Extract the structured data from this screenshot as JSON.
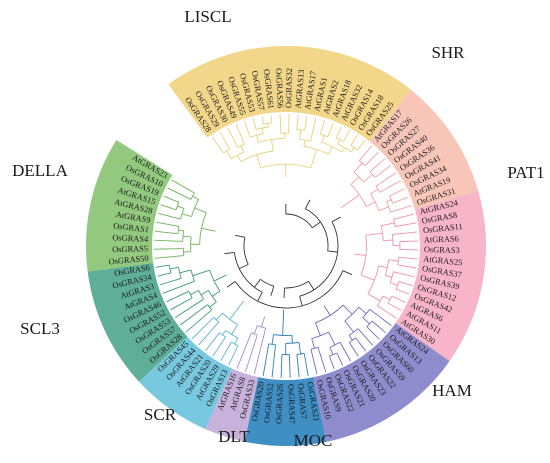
{
  "clades": [
    {
      "name": "LISCL",
      "color": "#f2d68a",
      "branch": "#e8d27a",
      "leaves": [
        "OsGRAS28",
        "OsGRAS29",
        "OsGRAS30",
        "OsGRAS49",
        "OsGRAS55",
        "OsGRAS53",
        "OsGRAS57",
        "OsGRAS61",
        "OsGRAS56",
        "OsGRAS32",
        "AtGRAS13",
        "AtGRAS17",
        "AtGRAS1",
        "AtGRAS2",
        "AtGRAS18",
        "AtGRAS32",
        "OsGRAS14",
        "OsGRAS18",
        "OsGRAS25"
      ]
    },
    {
      "name": "SHR",
      "color": "#f7c6b8",
      "branch": "#f0a0a8",
      "leaves": [
        "AtGRAS17",
        "OsGRAS26",
        "OsGRAS27",
        "OsGRAS40",
        "OsGRAS36",
        "OsGRAS41",
        "OsGRAS34",
        "AtGRAS19",
        "OsGRAS31"
      ]
    },
    {
      "name": "PAT1",
      "color": "#f8b4c8",
      "branch": "#f090b0",
      "leaves": [
        "AtGRAS24",
        "OsGRAS8",
        "OsGRAS11",
        "AtGRAS6",
        "OsGRAS3",
        "AtGRAS25",
        "OsGRAS37",
        "OsGRAS39",
        "OsGRAS12",
        "OsGRAS42",
        "AtGRAS6",
        "AtGRAS11",
        "AtGRAS30"
      ]
    },
    {
      "name": "HAM",
      "color": "#8e8ccc",
      "branch": "#6d6fbd",
      "leaves": [
        "AtGRAS24",
        "OsGRAS13",
        "OsGRAS60",
        "OsGRAS59",
        "OsGRAS22",
        "OsGRAS23",
        "OsGRAS20",
        "OsGRAS21",
        "OsGRAS22",
        "OsGRAS9",
        "OsGRAS10"
      ]
    },
    {
      "name": "MOC",
      "color": "#3f8fc4",
      "branch": "#2e7fb8",
      "leaves": [
        "OsGRAS21",
        "OsGRAS7",
        "OsGRAS47",
        "OsGRAS26",
        "OsGRAS52",
        "OsGRAS20"
      ]
    },
    {
      "name": "DLT",
      "color": "#c8b2dc",
      "branch": "#a98dc9",
      "leaves": [
        "OsGRAS33",
        "AtGRAS8",
        "AtGRAS16"
      ]
    },
    {
      "name": "SCR",
      "color": "#78c8e0",
      "branch": "#5ab6d4",
      "leaves": [
        "OsGRAS13",
        "AtGRAS29",
        "OsGRAS20",
        "AtGRAS21",
        "OsGRAS44",
        "OsGRAS45"
      ]
    },
    {
      "name": "SCL3",
      "color": "#5fae98",
      "branch": "#3f9a80",
      "leaves": [
        "OsGRAS28",
        "OsGRAS57",
        "OsGRAS53",
        "OsGRAS52",
        "OsGRAS46",
        "AtGRAS4",
        "AtGRAS3",
        "OsGRAS34",
        "OsGRAS6"
      ]
    },
    {
      "name": "DELLA",
      "color": "#92c97e",
      "branch": "#6fb45a",
      "leaves": [
        "OsGRAS50",
        "OsGRAS5",
        "OsGRAS4",
        "OsGRAS1",
        "AtGRAS9",
        "AtGRAS28",
        "AtGRAS15",
        "OsGRAS19",
        "OsGRAS10",
        "AtGRAS23"
      ]
    }
  ]
}
